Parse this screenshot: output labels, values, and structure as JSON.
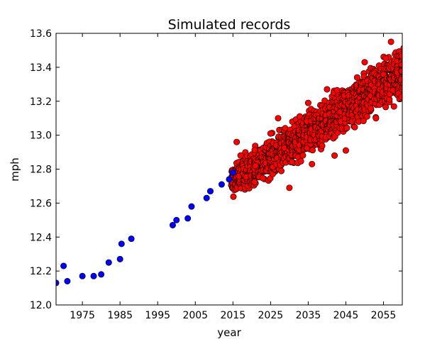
{
  "chart_data": {
    "type": "scatter",
    "title": "Simulated records",
    "xlabel": "year",
    "ylabel": "mph",
    "xlim": [
      1968,
      2060
    ],
    "ylim": [
      12.0,
      13.6
    ],
    "xticks": [
      1975,
      1985,
      1995,
      2005,
      2015,
      2025,
      2035,
      2045,
      2055
    ],
    "yticks": [
      12.0,
      12.2,
      12.4,
      12.6,
      12.8,
      13.0,
      13.2,
      13.4,
      13.6
    ],
    "xtick_labels": [
      "1975",
      "1985",
      "1995",
      "2005",
      "2015",
      "2025",
      "2035",
      "2045",
      "2055"
    ],
    "ytick_labels": [
      "12.0",
      "12.2",
      "12.4",
      "12.6",
      "12.8",
      "13.0",
      "13.2",
      "13.4",
      "13.6"
    ],
    "grid": false,
    "series": [
      {
        "color": "#0000ff",
        "marker": "circle",
        "points": [
          [
            1968,
            12.13
          ],
          [
            1970,
            12.23
          ],
          [
            1971,
            12.14
          ],
          [
            1975,
            12.17
          ],
          [
            1978,
            12.17
          ],
          [
            1980,
            12.18
          ],
          [
            1982,
            12.25
          ],
          [
            1985,
            12.27
          ],
          [
            1985.4,
            12.36
          ],
          [
            1988,
            12.39
          ],
          [
            1999,
            12.47
          ],
          [
            2000,
            12.5
          ],
          [
            2003,
            12.51
          ],
          [
            2004,
            12.58
          ],
          [
            2008,
            12.63
          ],
          [
            2009,
            12.67
          ],
          [
            2012,
            12.71
          ],
          [
            2014,
            12.74
          ],
          [
            2015,
            12.78
          ]
        ]
      },
      {
        "color": "#ff0000",
        "marker": "circle",
        "description_band": {
          "x_start": 2015,
          "x_end": 2060,
          "lower_start": 12.58,
          "upper_start": 12.88,
          "lower_end": 13.18,
          "upper_end": 13.56
        },
        "outliers": [
          [
            2016,
            12.96
          ],
          [
            2021,
            12.82
          ],
          [
            2025,
            13.01
          ],
          [
            2027,
            13.1
          ],
          [
            2030,
            12.69
          ],
          [
            2035,
            13.19
          ],
          [
            2036,
            12.83
          ],
          [
            2040,
            13.27
          ],
          [
            2042,
            12.88
          ],
          [
            2045,
            12.91
          ],
          [
            2048,
            13.34
          ],
          [
            2050,
            13.43
          ],
          [
            2053,
            13.1
          ],
          [
            2057,
            13.55
          ]
        ]
      }
    ]
  }
}
